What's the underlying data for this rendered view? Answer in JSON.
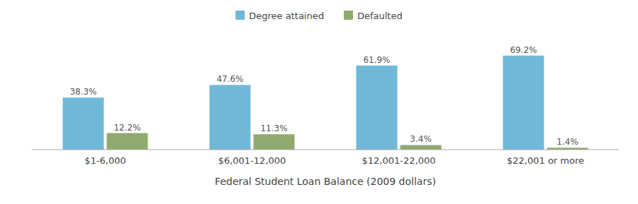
{
  "chart_data": {
    "type": "bar",
    "x_label": "Federal Student Loan Balance (2009 dollars)",
    "categories": [
      "$1-6,000",
      "$6,001-12,000",
      "$12,001-22,000",
      "$22,001 or more"
    ],
    "series": [
      {
        "name": "Degree attained",
        "color": "#70b8d8",
        "values": [
          38.3,
          47.6,
          61.9,
          69.2
        ],
        "value_labels": [
          "38.3%",
          "47.6%",
          "61.9%",
          "69.2%"
        ]
      },
      {
        "name": "Defaulted",
        "color": "#8faa6e",
        "values": [
          12.2,
          11.3,
          3.4,
          1.4
        ],
        "value_labels": [
          "12.2%",
          "11.3%",
          "3.4%",
          "1.4%"
        ]
      }
    ],
    "ylim": [
      0,
      80
    ],
    "data_labels": true,
    "tick_labels": "x",
    "grid": false,
    "legend": "top"
  }
}
